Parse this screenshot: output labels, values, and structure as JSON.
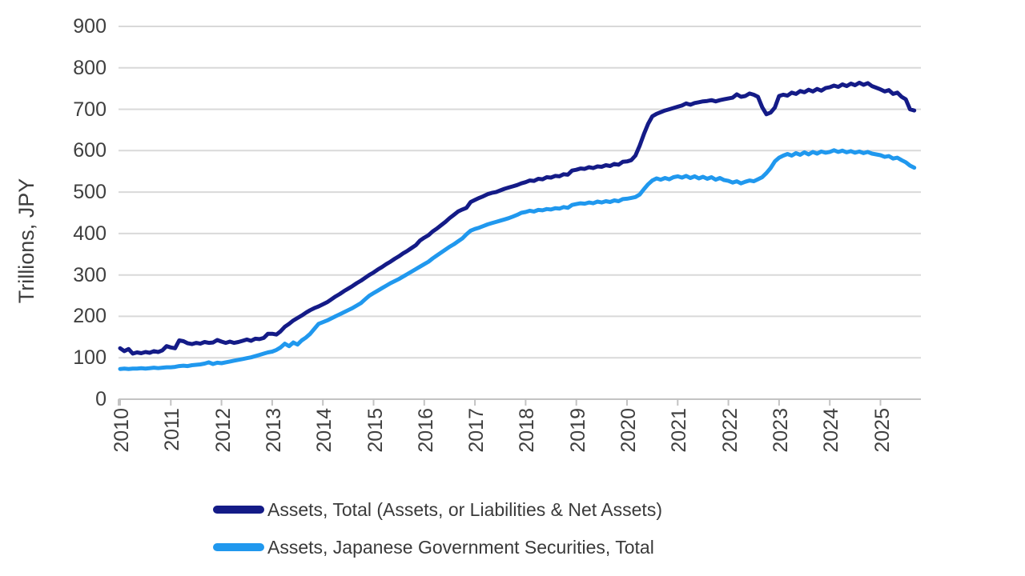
{
  "chart_data": {
    "type": "line",
    "title": "",
    "xlabel": "",
    "ylabel": "Trillions, JPY",
    "ylim": [
      0,
      900
    ],
    "y_ticks": [
      0,
      100,
      200,
      300,
      400,
      500,
      600,
      700,
      800,
      900
    ],
    "x_tick_labels": [
      "2010",
      "2011",
      "2012",
      "2013",
      "2014",
      "2015",
      "2016",
      "2017",
      "2018",
      "2019",
      "2020",
      "2021",
      "2022",
      "2023",
      "2024",
      "2025"
    ],
    "x_unit": "monthly",
    "x_range": [
      "2010-01",
      "2025-09"
    ],
    "grid": "horizontal",
    "grid_color": "#d9d9d9",
    "axis_color": "#c3c3c3",
    "text_color": "#3f3f3f",
    "legend_position": "bottom-left",
    "series": [
      {
        "name": "Assets, Total (Assets, or Liabilities & Net Assets)",
        "color": "#141b87",
        "values": [
          123,
          116,
          121,
          110,
          113,
          111,
          114,
          112,
          116,
          114,
          118,
          128,
          125,
          123,
          142,
          140,
          135,
          133,
          136,
          134,
          138,
          136,
          137,
          143,
          139,
          136,
          139,
          136,
          138,
          141,
          144,
          141,
          146,
          145,
          148,
          158,
          158,
          156,
          164,
          175,
          182,
          190,
          196,
          202,
          209,
          215,
          220,
          224,
          229,
          234,
          241,
          248,
          254,
          261,
          267,
          273,
          280,
          286,
          293,
          300,
          306,
          313,
          319,
          326,
          332,
          339,
          345,
          352,
          358,
          365,
          372,
          383,
          390,
          396,
          405,
          412,
          420,
          428,
          437,
          445,
          453,
          458,
          462,
          476,
          481,
          486,
          490,
          495,
          498,
          500,
          504,
          508,
          511,
          514,
          517,
          521,
          524,
          528,
          527,
          532,
          531,
          536,
          535,
          539,
          538,
          543,
          542,
          552,
          554,
          557,
          556,
          560,
          558,
          562,
          561,
          565,
          563,
          568,
          566,
          573,
          574,
          577,
          588,
          612,
          640,
          665,
          683,
          689,
          693,
          697,
          700,
          703,
          706,
          709,
          714,
          711,
          715,
          717,
          719,
          720,
          722,
          719,
          722,
          724,
          726,
          728,
          736,
          730,
          732,
          738,
          735,
          730,
          705,
          688,
          692,
          704,
          732,
          735,
          733,
          740,
          737,
          744,
          741,
          747,
          743,
          749,
          745,
          751,
          753,
          757,
          754,
          760,
          756,
          762,
          758,
          764,
          759,
          763,
          756,
          752,
          748,
          743,
          746,
          737,
          740,
          730,
          724,
          700,
          697
        ]
      },
      {
        "name": "Assets, Japanese Government Securities, Total",
        "color": "#2098ee",
        "values": [
          73,
          74,
          73,
          74,
          74,
          75,
          74,
          75,
          76,
          75,
          76,
          77,
          77,
          78,
          80,
          81,
          80,
          82,
          83,
          84,
          86,
          89,
          85,
          88,
          87,
          89,
          91,
          93,
          95,
          97,
          99,
          101,
          104,
          107,
          110,
          113,
          115,
          119,
          125,
          134,
          128,
          137,
          132,
          142,
          149,
          158,
          170,
          182,
          186,
          190,
          195,
          200,
          205,
          210,
          215,
          220,
          226,
          232,
          241,
          250,
          256,
          262,
          268,
          274,
          280,
          285,
          290,
          296,
          302,
          308,
          314,
          320,
          326,
          332,
          340,
          347,
          354,
          361,
          368,
          374,
          381,
          388,
          398,
          407,
          411,
          414,
          418,
          422,
          425,
          428,
          431,
          434,
          437,
          441,
          445,
          450,
          452,
          455,
          453,
          457,
          456,
          459,
          458,
          461,
          460,
          464,
          462,
          469,
          471,
          473,
          472,
          475,
          473,
          477,
          475,
          478,
          476,
          480,
          478,
          483,
          484,
          486,
          488,
          494,
          507,
          519,
          528,
          533,
          530,
          534,
          531,
          536,
          538,
          535,
          539,
          534,
          538,
          533,
          537,
          532,
          536,
          530,
          534,
          529,
          527,
          523,
          526,
          521,
          525,
          528,
          526,
          531,
          536,
          546,
          558,
          574,
          583,
          588,
          592,
          588,
          594,
          590,
          596,
          591,
          597,
          593,
          598,
          595,
          597,
          601,
          597,
          600,
          596,
          599,
          595,
          598,
          594,
          597,
          593,
          591,
          589,
          585,
          587,
          581,
          583,
          577,
          572,
          564,
          559
        ]
      }
    ]
  },
  "legend": {
    "items": [
      {
        "label": "Assets, Total (Assets, or Liabilities & Net Assets)"
      },
      {
        "label": "Assets, Japanese Government Securities, Total"
      }
    ]
  }
}
